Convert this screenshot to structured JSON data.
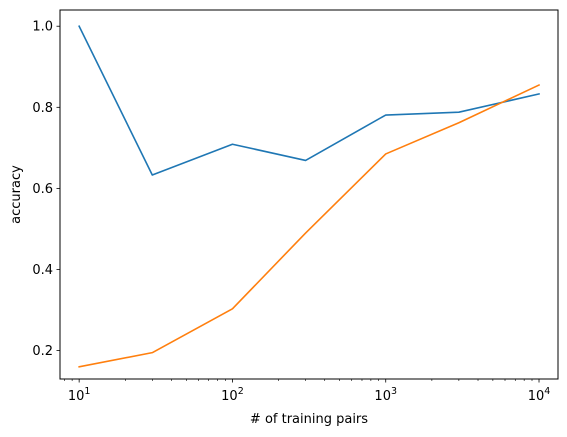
{
  "chart_data": {
    "type": "line",
    "title": "",
    "xlabel": "# of training pairs",
    "ylabel": "accuracy",
    "x_scale": "log",
    "xlim": [
      7.5,
      13300
    ],
    "ylim": [
      0.13,
      1.04
    ],
    "grid": false,
    "x_ticks": [
      {
        "value": 10,
        "base": "10",
        "exp": "1"
      },
      {
        "value": 100,
        "base": "10",
        "exp": "2"
      },
      {
        "value": 1000,
        "base": "10",
        "exp": "3"
      },
      {
        "value": 10000,
        "base": "10",
        "exp": "4"
      }
    ],
    "y_ticks": [
      {
        "value": 0.2,
        "label": "0.2"
      },
      {
        "value": 0.4,
        "label": "0.4"
      },
      {
        "value": 0.6,
        "label": "0.6"
      },
      {
        "value": 0.8,
        "label": "0.8"
      },
      {
        "value": 1.0,
        "label": "1.0"
      }
    ],
    "series": [
      {
        "color": "#1f77b4",
        "x": [
          10,
          30,
          100,
          300,
          1000,
          3000,
          10000
        ],
        "y": [
          1.0,
          0.633,
          0.709,
          0.669,
          0.781,
          0.788,
          0.833
        ]
      },
      {
        "color": "#ff7f0e",
        "x": [
          10,
          30,
          100,
          300,
          1000,
          3000,
          10000
        ],
        "y": [
          0.16,
          0.195,
          0.303,
          0.49,
          0.685,
          0.762,
          0.855
        ]
      }
    ]
  }
}
